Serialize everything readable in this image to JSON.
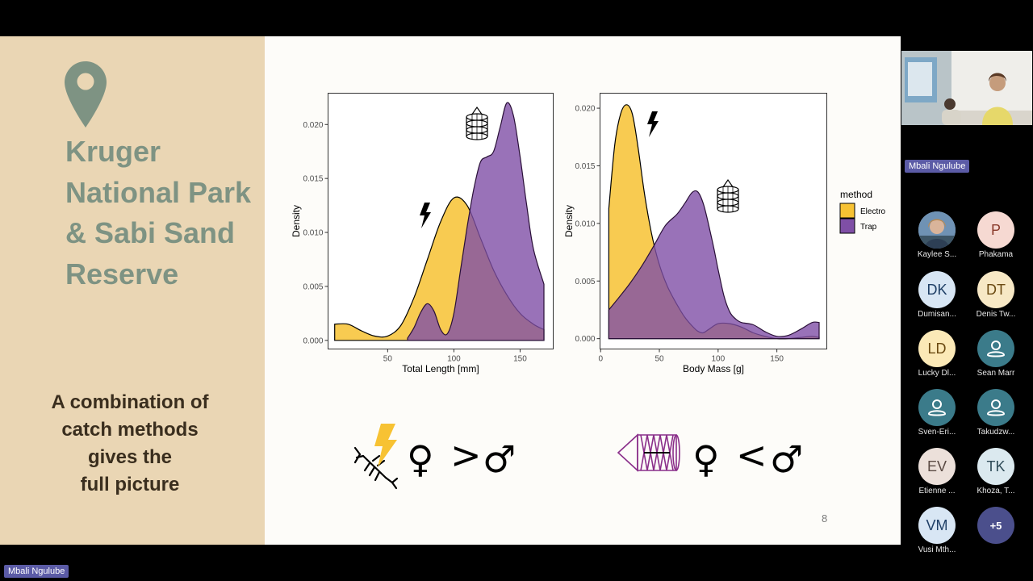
{
  "slide": {
    "title": "Kruger National Park & Sabi Sand Reserve",
    "subtitle_lines": [
      "A combination of",
      "catch methods",
      "gives the",
      "full picture"
    ],
    "page_number": "8",
    "comparison_left": {
      "operator": ">",
      "female": "♀",
      "male": "♂"
    },
    "comparison_right": {
      "operator": "<",
      "female": "♀",
      "male": "♂"
    },
    "icons": [
      "map-pin-icon",
      "lightning-bolt-icon",
      "crayfish-trap-icon",
      "crayfish-icon"
    ]
  },
  "chart_data": [
    {
      "type": "area",
      "title": "",
      "xlabel": "Total Length [mm]",
      "ylabel": "Density",
      "xlim": [
        5,
        175
      ],
      "ylim": [
        -0.0008,
        0.0229
      ],
      "xticks": [
        "50",
        "100",
        "150"
      ],
      "yticks": [
        "0.000",
        "0.005",
        "0.010",
        "0.015",
        "0.020"
      ],
      "series": [
        {
          "name": "Electro",
          "color": "#f7c233",
          "x": [
            10,
            20,
            30,
            40,
            50,
            60,
            70,
            80,
            90,
            100,
            110,
            120,
            130,
            140,
            150,
            160,
            168
          ],
          "y": [
            0.0015,
            0.0015,
            0.0009,
            0.0004,
            0.0004,
            0.0014,
            0.004,
            0.0075,
            0.011,
            0.0132,
            0.0125,
            0.0095,
            0.0065,
            0.0042,
            0.0025,
            0.0015,
            0.001
          ]
        },
        {
          "name": "Trap",
          "color": "#7f4fa6",
          "x": [
            65,
            70,
            75,
            80,
            85,
            90,
            95,
            100,
            105,
            110,
            115,
            120,
            125,
            130,
            135,
            140,
            145,
            150,
            155,
            160,
            168
          ],
          "y": [
            0.0002,
            0.0012,
            0.0026,
            0.0034,
            0.0027,
            0.001,
            0.0006,
            0.0025,
            0.0065,
            0.0105,
            0.014,
            0.0165,
            0.017,
            0.0175,
            0.0198,
            0.022,
            0.0208,
            0.017,
            0.0125,
            0.0085,
            0.0052
          ]
        }
      ]
    },
    {
      "type": "area",
      "title": "",
      "xlabel": "Body Mass [g]",
      "ylabel": "Density",
      "xlim": [
        -0.5,
        192.5
      ],
      "ylim": [
        -0.0009,
        0.0213
      ],
      "xticks": [
        "0",
        "50",
        "100",
        "150"
      ],
      "yticks": [
        "0.000",
        "0.005",
        "0.010",
        "0.015",
        "0.020"
      ],
      "series": [
        {
          "name": "Electro",
          "color": "#f7c233",
          "x": [
            7,
            12,
            17,
            22,
            27,
            32,
            37,
            42,
            47,
            52,
            57,
            62,
            67,
            72,
            77,
            82,
            87,
            92,
            100,
            110,
            120,
            130,
            140,
            150,
            160,
            170,
            180,
            186
          ],
          "y": [
            0.0113,
            0.0168,
            0.0195,
            0.0203,
            0.0195,
            0.0165,
            0.0128,
            0.0098,
            0.0075,
            0.0058,
            0.0045,
            0.0035,
            0.0026,
            0.0018,
            0.0012,
            0.0007,
            0.0005,
            0.0008,
            0.0013,
            0.0013,
            0.001,
            0.0005,
            0.0002,
            0.0,
            0.0,
            0.0001,
            0.0002,
            0.0001
          ]
        },
        {
          "name": "Trap",
          "color": "#7f4fa6",
          "x": [
            7,
            15,
            25,
            35,
            45,
            55,
            65,
            72,
            78,
            83,
            88,
            95,
            100,
            105,
            110,
            115,
            120,
            130,
            140,
            150,
            160,
            170,
            180,
            186
          ],
          "y": [
            0.0025,
            0.0035,
            0.0048,
            0.0063,
            0.008,
            0.0098,
            0.0108,
            0.0118,
            0.0127,
            0.0127,
            0.0115,
            0.0085,
            0.006,
            0.0037,
            0.0023,
            0.0017,
            0.0014,
            0.0012,
            0.0006,
            0.0002,
            0.0003,
            0.0008,
            0.0014,
            0.0014
          ]
        }
      ]
    }
  ],
  "legend": {
    "title": "method",
    "items": [
      {
        "label": "Electro",
        "color": "#f7c233"
      },
      {
        "label": "Trap",
        "color": "#7f4fa6"
      }
    ]
  },
  "meeting": {
    "speaker_name": "Mbali Ngulube",
    "presenter_name": "Mbali Ngulube",
    "participants": [
      {
        "initials": "",
        "name": "Kaylee S...",
        "bg": "#8aa0b0",
        "photo": true
      },
      {
        "initials": "P",
        "name": "Phakama",
        "bg": "#f6d9d2"
      },
      {
        "initials": "DK",
        "name": "Dumisan...",
        "bg": "#d8e6f4"
      },
      {
        "initials": "DT",
        "name": "Denis Tw...",
        "bg": "#f7e8c5"
      },
      {
        "initials": "LD",
        "name": "Lucky Dl...",
        "bg": "#fbe9b7"
      },
      {
        "initials": "",
        "name": "Sean Marr",
        "bg": "#3b7b8a",
        "generic": true
      },
      {
        "initials": "",
        "name": "Sven-Eri...",
        "bg": "#3b7b8a",
        "generic": true
      },
      {
        "initials": "",
        "name": "Takudzw...",
        "bg": "#3b7b8a",
        "generic": true
      },
      {
        "initials": "EV",
        "name": "Etienne ...",
        "bg": "#ece0da"
      },
      {
        "initials": "TK",
        "name": "Khoza, T...",
        "bg": "#dbe9ef"
      },
      {
        "initials": "VM",
        "name": "Vusi Mth...",
        "bg": "#d8e6f4"
      },
      {
        "initials": "+5",
        "name": "",
        "bg": "#4b4f8c",
        "overflow": true
      }
    ]
  }
}
